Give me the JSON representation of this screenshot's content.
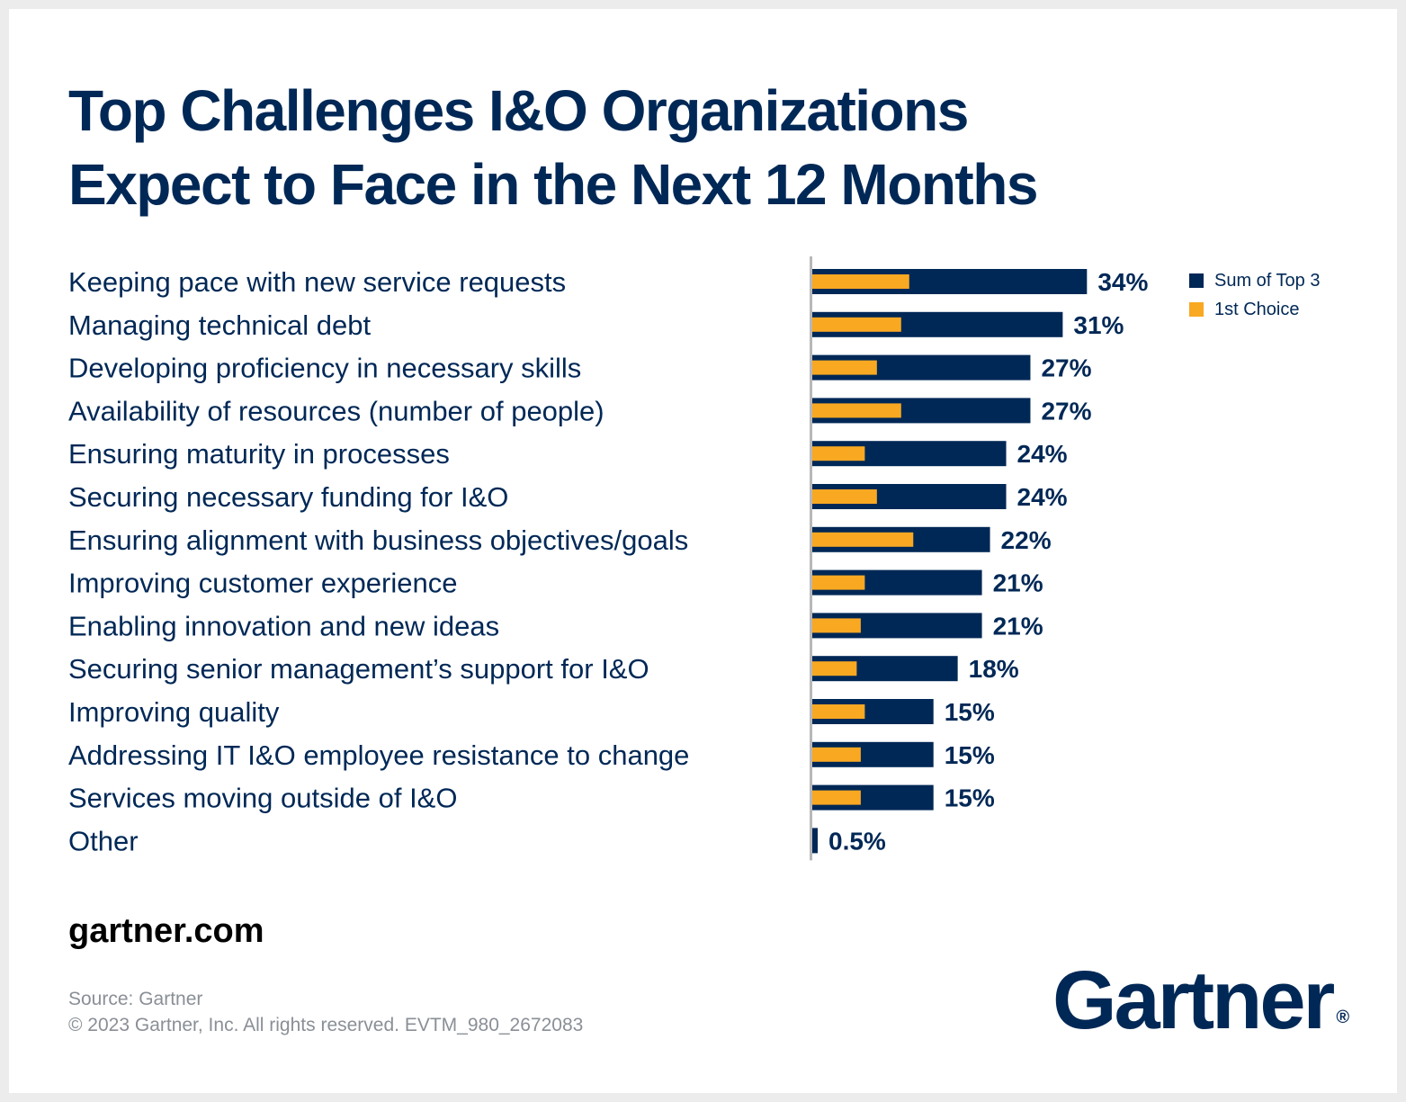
{
  "title_lines": [
    "Top Challenges I&O Organizations",
    "Expect to Face in the Next 12 Months"
  ],
  "colors": {
    "navy": "#002856",
    "orange": "#F9A822",
    "axis": "#b8b8b8"
  },
  "legend": {
    "items": [
      {
        "label": "Sum of Top 3",
        "color": "#002856"
      },
      {
        "label": "1st Choice",
        "color": "#F9A822"
      }
    ]
  },
  "footer": {
    "site": "gartner.com",
    "source": "Source: Gartner",
    "copyright": "© 2023 Gartner, Inc. All rights reserved. EVTM_980_2672083",
    "logo": "Gartner",
    "logo_mark": "®"
  },
  "chart_data": {
    "type": "bar",
    "orientation": "horizontal",
    "title": "Top Challenges I&O Organizations Expect to Face in the Next 12 Months",
    "categories": [
      "Keeping pace with new service requests",
      "Managing technical debt",
      "Developing proficiency in necessary skills",
      "Availability of resources (number of people)",
      "Ensuring maturity in processes",
      "Securing necessary funding for I&O",
      "Ensuring alignment with business objectives/goals",
      "Improving customer experience",
      "Enabling innovation and new ideas",
      "Securing senior management’s support for I&O",
      "Improving quality",
      "Addressing IT I&O employee resistance to change",
      "Services moving outside of I&O",
      "Other"
    ],
    "series": [
      {
        "name": "Sum of Top 3",
        "values": [
          34,
          31,
          27,
          27,
          24,
          24,
          22,
          21,
          21,
          18,
          15,
          15,
          15,
          0.5
        ],
        "value_labels": [
          "34%",
          "31%",
          "27%",
          "27%",
          "24%",
          "24%",
          "22%",
          "21%",
          "21%",
          "18%",
          "15%",
          "15%",
          "15%",
          "0.5%"
        ]
      },
      {
        "name": "1st Choice",
        "values": [
          12,
          11,
          8,
          11,
          6.5,
          8,
          12.5,
          6.5,
          6,
          5.5,
          6.5,
          6,
          6,
          0
        ]
      }
    ],
    "xlim": [
      0,
      36
    ],
    "grid": false,
    "legend_position": "top-right"
  }
}
